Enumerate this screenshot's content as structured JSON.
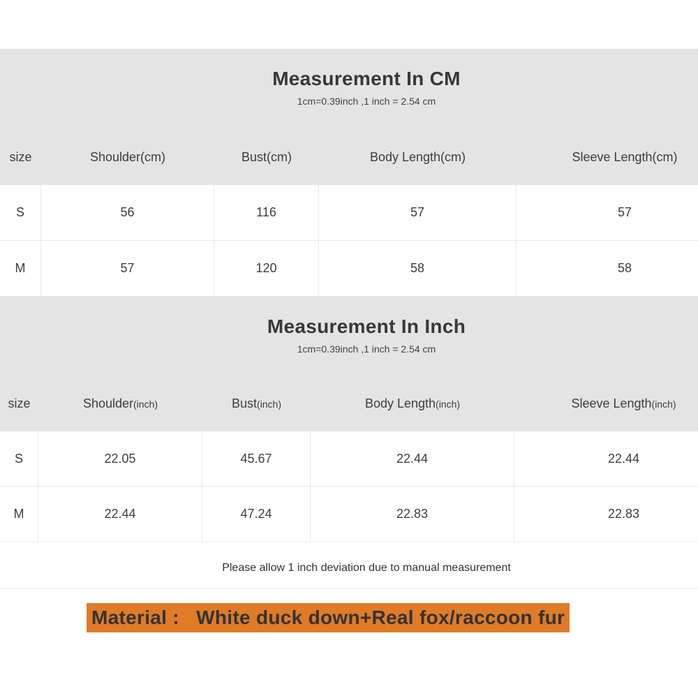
{
  "colors": {
    "header_band": "#e4e4e4",
    "table_border": "#e9e9e9",
    "highlight": "#e07b28",
    "text": "#3d3d3d"
  },
  "sections": [
    {
      "title": "Measurement In CM",
      "subtitle": "1cm=0.39inch ,1 inch = 2.54 cm",
      "columns": [
        {
          "label": "size",
          "unit": ""
        },
        {
          "label": "Shoulder",
          "unit": "(cm)"
        },
        {
          "label": "Bust",
          "unit": "(cm)"
        },
        {
          "label": "Body Length",
          "unit": "(cm)"
        },
        {
          "label": "Sleeve Length",
          "unit": "(cm)"
        }
      ],
      "rows": [
        {
          "size": "S",
          "values": [
            "56",
            "116",
            "57",
            "57"
          ]
        },
        {
          "size": "M",
          "values": [
            "57",
            "120",
            "58",
            "58"
          ]
        }
      ]
    },
    {
      "title": "Measurement In Inch",
      "subtitle": "1cm=0.39inch ,1 inch = 2.54 cm",
      "columns": [
        {
          "label": "size",
          "unit": ""
        },
        {
          "label": "Shoulder",
          "unit": "(inch)"
        },
        {
          "label": "Bust",
          "unit": "(inch)"
        },
        {
          "label": "Body Length",
          "unit": "(inch)"
        },
        {
          "label": "Sleeve Length",
          "unit": "(inch)"
        }
      ],
      "rows": [
        {
          "size": "S",
          "values": [
            "22.05",
            "45.67",
            "22.44",
            "22.44"
          ]
        },
        {
          "size": "M",
          "values": [
            "22.44",
            "47.24",
            "22.83",
            "22.83"
          ]
        }
      ]
    }
  ],
  "note": "Please allow 1 inch deviation due to manual measurement",
  "material": {
    "text": "Material :   White duck down+Real fox/raccoon fur",
    "highlight_color": "#e07b28"
  }
}
